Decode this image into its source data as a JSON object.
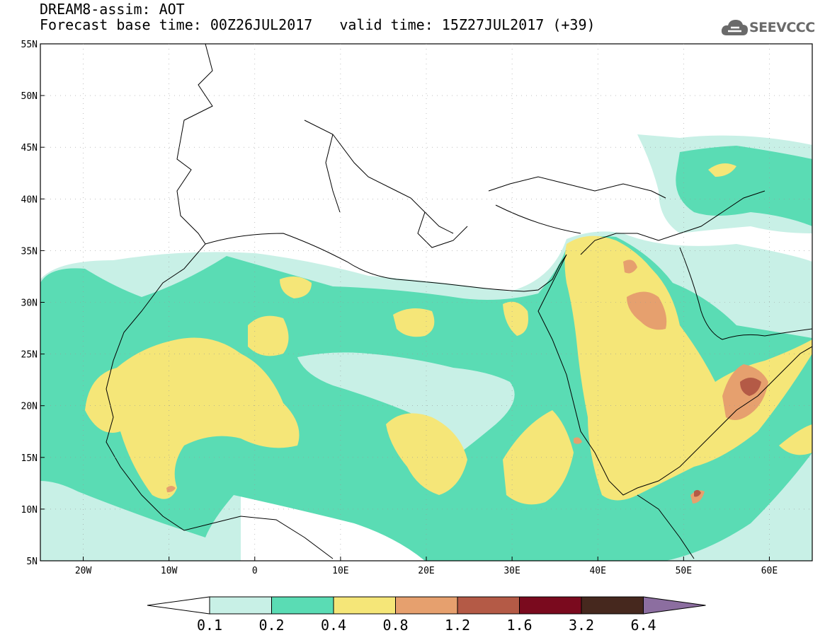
{
  "title": {
    "product": "DREAM8-assim: AOT",
    "base_time": "Forecast base time: 00Z26JUL2017",
    "valid_time": "valid time: 15Z27JUL2017 (+39)"
  },
  "logo": {
    "text": "SEEVCCC",
    "icon": "cloud-icon"
  },
  "map": {
    "lon_range": [
      -25,
      65
    ],
    "lat_range": [
      5,
      55
    ],
    "lat_labels": [
      "55N",
      "50N",
      "45N",
      "40N",
      "35N",
      "30N",
      "25N",
      "20N",
      "15N",
      "10N",
      "5N"
    ],
    "lon_labels": [
      "20W",
      "10W",
      "0",
      "10E",
      "20E",
      "30E",
      "40E",
      "50E",
      "60E"
    ]
  },
  "colorbar": {
    "labels": [
      "0.1",
      "0.2",
      "0.4",
      "0.8",
      "1.2",
      "1.6",
      "3.2",
      "6.4"
    ],
    "colors": [
      "#ffffff",
      "#c8f0e6",
      "#5adcb4",
      "#f5e678",
      "#e6a06e",
      "#b45a46",
      "#7a0a1e",
      "#46281e",
      "#8c6ea0"
    ]
  }
}
